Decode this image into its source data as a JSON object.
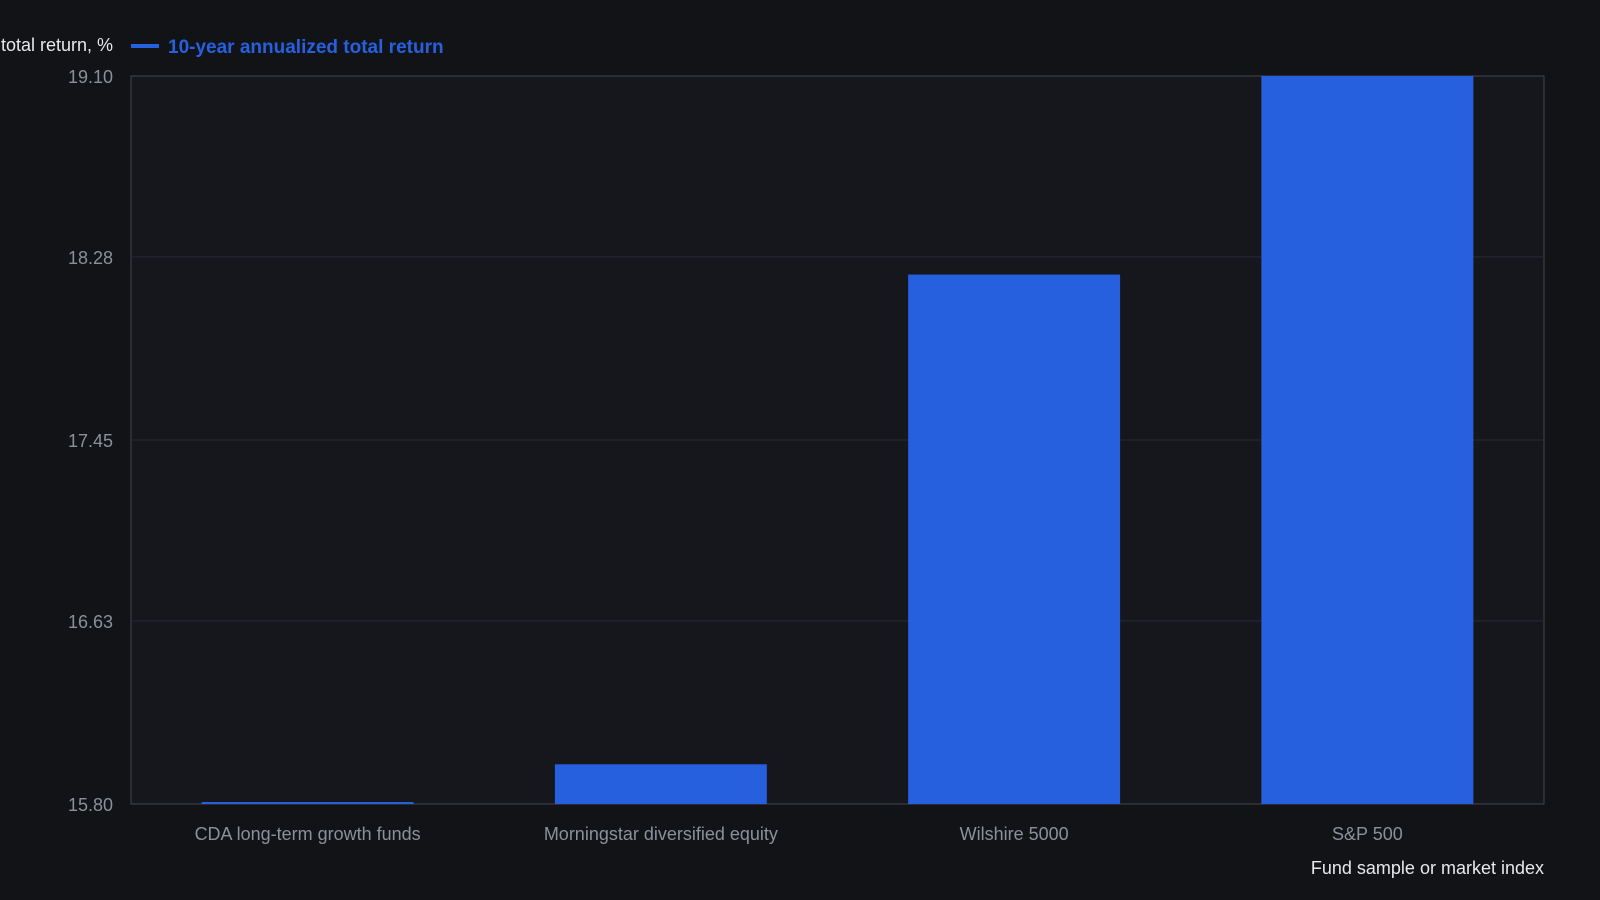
{
  "chart_data": {
    "type": "bar",
    "categories": [
      "CDA long-term growth funds",
      "Morningstar diversified equity",
      "Wilshire 5000",
      "S&P 500"
    ],
    "series": [
      {
        "name": "10-year annualized total return",
        "values": [
          15.8,
          15.98,
          18.2,
          19.1
        ]
      }
    ],
    "title": "",
    "xlabel": "Fund sample or market index",
    "ylabel": "Annualized total return, %",
    "ylim": [
      15.8,
      19.1
    ],
    "yticks": [
      "15.80",
      "16.63",
      "17.45",
      "18.28",
      "19.10"
    ],
    "grid": true,
    "legend": "top-left",
    "colors": {
      "bar": "#2760df",
      "background": "#111317",
      "plot_background": "#15171c",
      "grid": "#272a31",
      "axis": "#3a3e46",
      "tick_text": "#8b9099",
      "label_text": "#e6e8eb"
    }
  }
}
